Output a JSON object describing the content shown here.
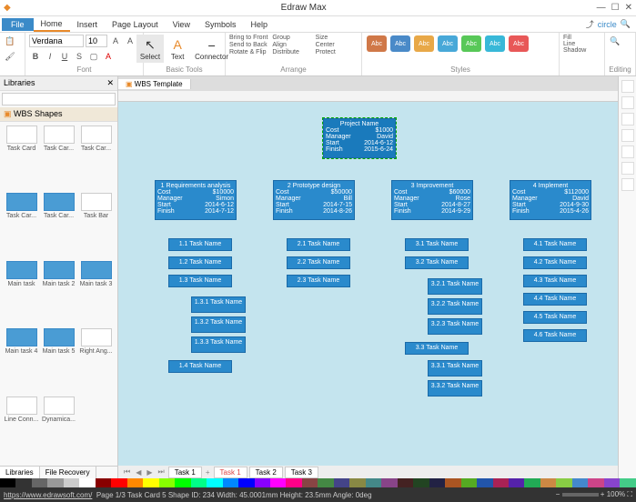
{
  "app": {
    "title": "Edraw Max"
  },
  "menu": {
    "file": "File",
    "tabs": [
      "Home",
      "Insert",
      "Page Layout",
      "View",
      "Symbols",
      "Help"
    ],
    "active": 0,
    "search_placeholder": "circle"
  },
  "ribbon": {
    "font": {
      "name": "Verdana",
      "size": "10",
      "label": "Font"
    },
    "tools": {
      "select": "Select",
      "text": "Text",
      "connector": "Connector",
      "label": "Basic Tools"
    },
    "arrange": {
      "bring_front": "Bring to Front",
      "send_back": "Send to Back",
      "rotate": "Rotate & Flip",
      "group": "Group",
      "align": "Align",
      "distribute": "Distribute",
      "size": "Size",
      "center": "Center",
      "protect": "Protect",
      "label": "Arrange"
    },
    "styles": {
      "swatches": [
        {
          "bg": "#d07848",
          "txt": "Abc"
        },
        {
          "bg": "#4a8ac8",
          "txt": "Abc"
        },
        {
          "bg": "#e8a848",
          "txt": "Abc"
        },
        {
          "bg": "#48a8d8",
          "txt": "Abc"
        },
        {
          "bg": "#58c858",
          "txt": "Abc"
        },
        {
          "bg": "#38b8d8",
          "txt": "Abc"
        },
        {
          "bg": "#e85858",
          "txt": "Abc"
        }
      ],
      "fill": "Fill",
      "line": "Line",
      "shadow": "Shadow",
      "label": "Styles"
    },
    "editing": "Editing"
  },
  "sidebar": {
    "title": "Libraries",
    "category": "WBS Shapes",
    "shapes": [
      "Task Card",
      "Task Car...",
      "Task Car...",
      "Task Car...",
      "Task Car...",
      "Task Bar",
      "Main task",
      "Main task 2",
      "Main task 3",
      "Main task 4",
      "Main task 5",
      "Right Ang...",
      "Line Conn...",
      "Dynamica..."
    ],
    "tabs": [
      "Libraries",
      "File Recovery"
    ]
  },
  "doc": {
    "tab": "WBS Template"
  },
  "diagram": {
    "bg": "#c4e4ee",
    "node_bg": "#2a9ad4",
    "node_border": "#1a7ab8",
    "root": {
      "title": "Project Name",
      "cost": "Cost",
      "cost_val": "$1000",
      "manager": "Manager",
      "manager_val": "David",
      "start": "Start",
      "start_val": "2014-6-12",
      "finish": "Finish",
      "finish_val": "2015-6-24"
    },
    "level2": [
      {
        "n": "1",
        "title": "Requirements analysis",
        "cost": "$10000",
        "mgr": "Simon",
        "start": "2014-6-12",
        "finish": "2014-7-12"
      },
      {
        "n": "2",
        "title": "Prototype design",
        "cost": "$50000",
        "mgr": "Bill",
        "start": "2014-7-15",
        "finish": "2014-8-26"
      },
      {
        "n": "3",
        "title": "Improvement",
        "cost": "$60000",
        "mgr": "Rose",
        "start": "2014-8-27",
        "finish": "2014-9-29"
      },
      {
        "n": "4",
        "title": "Implement",
        "cost": "$112000",
        "mgr": "David",
        "start": "2014-9-30",
        "finish": "2015-4-26"
      }
    ],
    "tasks_1": [
      "1.1 Task Name",
      "1.2 Task Name",
      "1.3 Task Name"
    ],
    "tasks_13": [
      "1.3.1 Task Name",
      "1.3.2 Task Name",
      "1.3.3 Task Name"
    ],
    "task_14": "1.4 Task Name",
    "tasks_2": [
      "2.1 Task Name",
      "2.2 Task Name",
      "2.3 Task Name"
    ],
    "tasks_3": [
      "3.1 Task Name",
      "3.2 Task Name"
    ],
    "tasks_32": [
      "3.2.1 Task Name",
      "3.2.2 Task Name",
      "3.2.3 Task Name"
    ],
    "task_33": "3.3 Task Name",
    "tasks_33": [
      "3.3.1 Task Name",
      "3.3.2 Task Name"
    ],
    "tasks_4": [
      "4.1 Task Name",
      "4.2 Task Name",
      "4.3 Task Name",
      "4.4 Task Name",
      "4.5 Task Name",
      "4.6 Task Name"
    ],
    "labels": {
      "cost": "Cost",
      "manager": "Manager",
      "start": "Start",
      "finish": "Finish"
    }
  },
  "sheets": [
    "Task 1",
    "Task 1",
    "Task 2",
    "Task 3"
  ],
  "colorbar": [
    "#000",
    "#333",
    "#666",
    "#999",
    "#ccc",
    "#fff",
    "#800",
    "#f00",
    "#f80",
    "#ff0",
    "#8f0",
    "#0f0",
    "#0f8",
    "#0ff",
    "#08f",
    "#00f",
    "#80f",
    "#f0f",
    "#f08",
    "#844",
    "#484",
    "#448",
    "#884",
    "#488",
    "#848",
    "#422",
    "#242",
    "#224",
    "#a52",
    "#5a2",
    "#25a",
    "#a25",
    "#52a",
    "#2a5",
    "#c84",
    "#8c4",
    "#48c",
    "#c48",
    "#84c",
    "#4c8"
  ],
  "status": {
    "url": "https://www.edrawsoft.com/",
    "info": "Page 1/3  Task Card 5  Shape ID: 234  Width: 45.0001mm  Height: 23.5mm  Angle: 0deg",
    "zoom": "100%"
  }
}
